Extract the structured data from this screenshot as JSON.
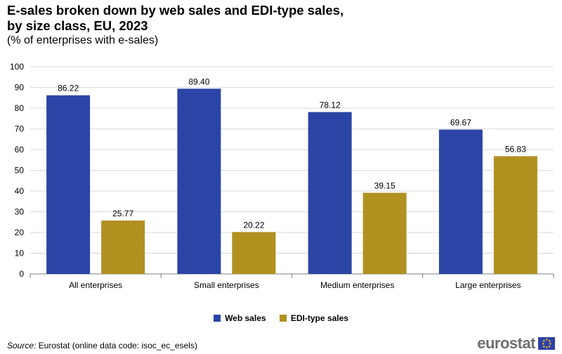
{
  "header": {
    "title_line1": "E-sales broken down by web sales and EDI-type sales,",
    "title_line2": "by size class, EU, 2023",
    "subtitle": "(% of enterprises with e-sales)"
  },
  "colors": {
    "web": "#2B45A6",
    "edi": "#B09120",
    "grid": "#d9d9d9",
    "axis": "#7f7f7f"
  },
  "chart_data": {
    "type": "bar",
    "title": "E-sales broken down by web sales and EDI-type sales, by size class, EU, 2023",
    "subtitle": "(% of enterprises with e-sales)",
    "categories": [
      "All enterprises",
      "Small enterprises",
      "Medium enterprises",
      "Large enterprises"
    ],
    "series": [
      {
        "name": "Web sales",
        "values": [
          86.22,
          89.4,
          78.12,
          69.67
        ],
        "labels": [
          "86.22",
          "89.40",
          "78.12",
          "69.67"
        ]
      },
      {
        "name": "EDI-type sales",
        "values": [
          25.77,
          20.22,
          39.15,
          56.83
        ],
        "labels": [
          "25.77",
          "20.22",
          "39.15",
          "56.83"
        ]
      }
    ],
    "ylim": [
      0,
      100
    ],
    "yticks": [
      0,
      10,
      20,
      30,
      40,
      50,
      60,
      70,
      80,
      90,
      100
    ],
    "xlabel": "",
    "ylabel": "",
    "grid": true,
    "legend_position": "bottom"
  },
  "legend": {
    "web_label": "Web sales",
    "edi_label": "EDI-type sales"
  },
  "footer": {
    "source_prefix": "Source:",
    "source_text": " Eurostat (online data code: isoc_ec_esels)",
    "logo_text": "eurostat"
  }
}
